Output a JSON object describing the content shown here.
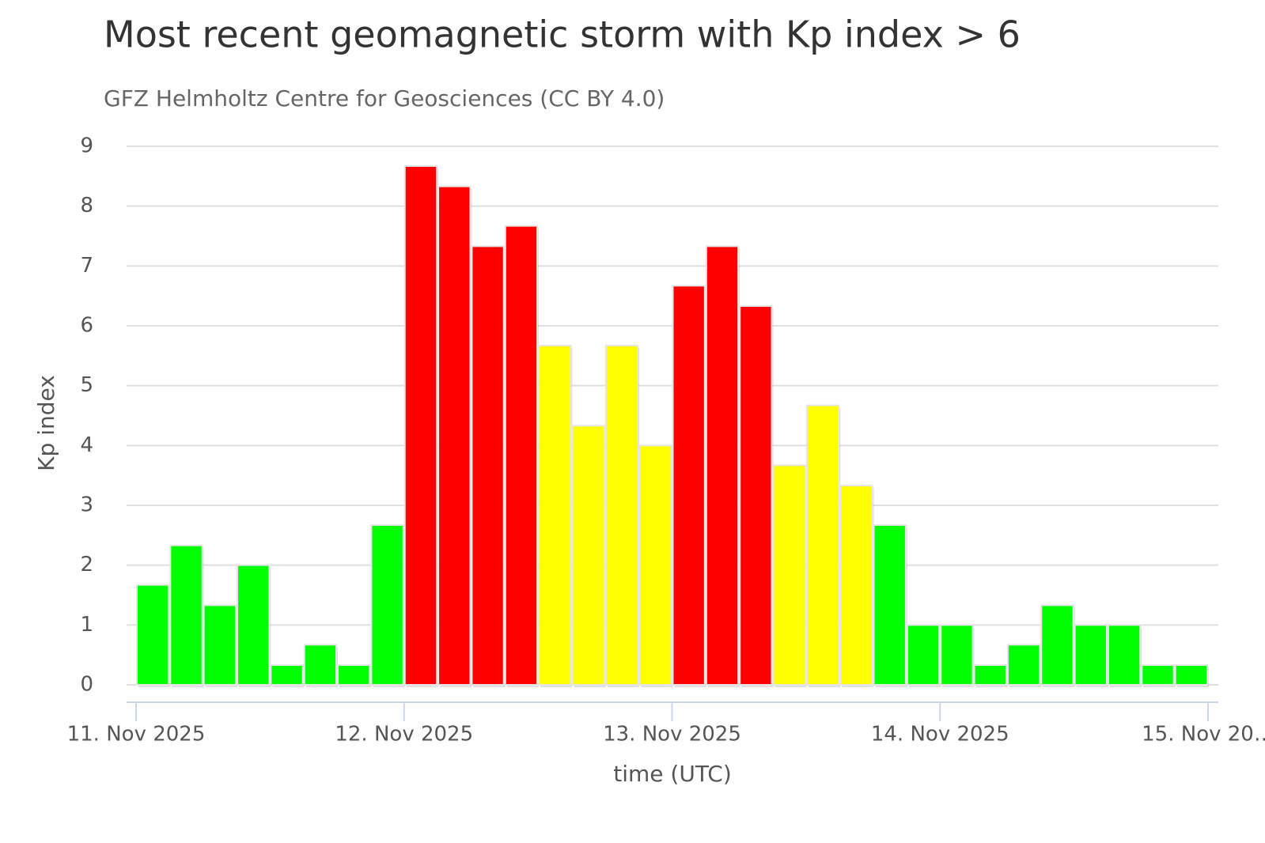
{
  "chart_data": {
    "type": "bar",
    "title": "Most recent geomagnetic storm with Kp index > 6",
    "subtitle": "GFZ Helmholtz Centre for Geosciences (CC BY 4.0)",
    "y_label": "Kp index",
    "x_label": "time (UTC)",
    "categories": [
      null,
      null,
      null,
      null,
      null,
      null,
      null,
      null,
      null,
      null,
      null,
      null,
      null,
      null,
      null,
      null,
      null,
      null,
      null,
      null,
      null,
      null,
      null,
      null,
      null,
      null,
      null,
      null,
      null,
      null,
      null,
      null
    ],
    "values": [
      1.67,
      2.33,
      1.33,
      2.0,
      0.33,
      0.67,
      0.33,
      2.67,
      8.67,
      8.33,
      7.33,
      7.67,
      5.67,
      4.33,
      5.67,
      4.0,
      6.67,
      7.33,
      6.33,
      3.67,
      4.67,
      3.33,
      2.67,
      1.0,
      1.0,
      0.33,
      0.67,
      1.33,
      1.0,
      1.0,
      0.33,
      0.33
    ],
    "colors": [
      "#00ff00",
      "#00ff00",
      "#00ff00",
      "#00ff00",
      "#00ff00",
      "#00ff00",
      "#00ff00",
      "#00ff00",
      "#ff0000",
      "#ff0000",
      "#ff0000",
      "#ff0000",
      "#ffff00",
      "#ffff00",
      "#ffff00",
      "#ffff00",
      "#ff0000",
      "#ff0000",
      "#ff0000",
      "#ffff00",
      "#ffff00",
      "#ffff00",
      "#00ff00",
      "#00ff00",
      "#00ff00",
      "#00ff00",
      "#00ff00",
      "#00ff00",
      "#00ff00",
      "#00ff00",
      "#00ff00",
      "#00ff00"
    ],
    "xlim": [
      0,
      32
    ],
    "xticks": [
      {
        "value": 0,
        "label": "11. Nov 2025"
      },
      {
        "value": 8,
        "label": "12. Nov 2025"
      },
      {
        "value": 16,
        "label": "13. Nov 2025"
      },
      {
        "value": 24,
        "label": "14. Nov 2025"
      },
      {
        "value": 32,
        "label": "15. Nov 20…"
      }
    ],
    "ylim": [
      0,
      9
    ],
    "yticks": [
      0,
      1,
      2,
      3,
      4,
      5,
      6,
      7,
      8,
      9
    ],
    "grid": true
  }
}
